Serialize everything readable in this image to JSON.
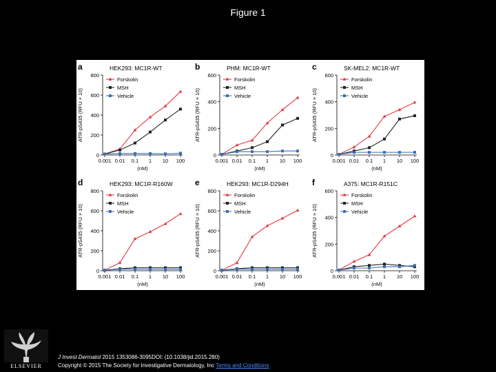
{
  "slide": {
    "title": "Figure 1"
  },
  "footer": {
    "journal": "J Invest Dermatol",
    "citation": " 2015 1353086-3095DOI: (10.1038/jid.2015.280)",
    "copyright": "Copyright © 2015 The Society for Investigative Dermatology, Inc ",
    "terms_link": "Terms and Conditions"
  },
  "logo": {
    "text": "ELSEVIER",
    "icon": "elsevier-tree-logo"
  },
  "colors": {
    "forskolin": "#e0393e",
    "msh": "#222222",
    "vehicle": "#3a6fb5"
  },
  "chart_data": [
    {
      "type": "line",
      "panel": "a",
      "title": "HEK293: MC1R-WT",
      "ylabel": "ATR-pS435 (RFU × 10)",
      "xlabel": "(nM)",
      "xscale": "log",
      "ylim": [
        0,
        800
      ],
      "yticks": [
        0,
        200,
        400,
        600,
        800
      ],
      "x": [
        0.001,
        0.01,
        0.1,
        1,
        10,
        100
      ],
      "xticklabels": [
        "0.001",
        "0.01",
        "0.1",
        "1",
        "10",
        "100"
      ],
      "legend": "top-left",
      "series": [
        {
          "name": "Forskolin",
          "values": [
            10,
            60,
            250,
            380,
            490,
            635
          ]
        },
        {
          "name": "MSH",
          "values": [
            10,
            50,
            120,
            230,
            350,
            460
          ]
        },
        {
          "name": "Vehicle",
          "values": [
            10,
            15,
            15,
            15,
            12,
            18
          ]
        }
      ]
    },
    {
      "type": "line",
      "panel": "b",
      "title": "PHM: MC1R-WT",
      "ylabel": "ATR-pS435 (RFU × 10)",
      "xlabel": "(nM)",
      "xscale": "log",
      "ylim": [
        0,
        600
      ],
      "yticks": [
        0,
        200,
        400,
        600
      ],
      "x": [
        0.001,
        0.01,
        0.1,
        1,
        10,
        100
      ],
      "xticklabels": [
        "0.001",
        "0.01",
        "0.1",
        "1",
        "10",
        "100"
      ],
      "legend": "top-left",
      "series": [
        {
          "name": "Forskolin",
          "values": [
            5,
            75,
            110,
            240,
            340,
            430
          ]
        },
        {
          "name": "MSH",
          "values": [
            5,
            30,
            55,
            100,
            225,
            275
          ]
        },
        {
          "name": "Vehicle",
          "values": [
            5,
            25,
            25,
            25,
            30,
            30
          ]
        }
      ]
    },
    {
      "type": "line",
      "panel": "c",
      "title": "SK-MEL2: MC1R-WT",
      "ylabel": "ATR-pS435 (RFU × 10)",
      "xlabel": "(nM)",
      "xscale": "log",
      "ylim": [
        0,
        600
      ],
      "yticks": [
        0,
        200,
        400,
        600
      ],
      "x": [
        0.001,
        0.01,
        0.1,
        1,
        10,
        100
      ],
      "xticklabels": [
        "0.001",
        "0.01",
        "0.1",
        "1",
        "10",
        "100"
      ],
      "legend": "top-left",
      "series": [
        {
          "name": "Forskolin",
          "values": [
            5,
            60,
            140,
            290,
            340,
            395
          ]
        },
        {
          "name": "MSH",
          "values": [
            5,
            30,
            55,
            120,
            270,
            295
          ]
        },
        {
          "name": "Vehicle",
          "values": [
            5,
            20,
            20,
            20,
            20,
            20
          ]
        }
      ]
    },
    {
      "type": "line",
      "panel": "d",
      "title": "HEK293: MC1R-R160W",
      "ylabel": "ATR-pS435 (RFU × 10)",
      "xlabel": "(nM)",
      "xscale": "log",
      "ylim": [
        0,
        800
      ],
      "yticks": [
        0,
        200,
        400,
        600,
        800
      ],
      "x": [
        0.001,
        0.01,
        0.1,
        1,
        10,
        100
      ],
      "xticklabels": [
        "0.001",
        "0.01",
        "0.1",
        "1",
        "10",
        "100"
      ],
      "legend": "top-left",
      "series": [
        {
          "name": "Forskolin",
          "values": [
            5,
            80,
            320,
            390,
            470,
            570
          ]
        },
        {
          "name": "MSH",
          "values": [
            5,
            20,
            30,
            30,
            30,
            30
          ]
        },
        {
          "name": "Vehicle",
          "values": [
            5,
            15,
            15,
            15,
            15,
            15
          ]
        }
      ]
    },
    {
      "type": "line",
      "panel": "e",
      "title": "HEK293: MC1R-D294H",
      "ylabel": "ATR-pS435 (RFU × 10)",
      "xlabel": "(nM)",
      "xscale": "log",
      "ylim": [
        0,
        800
      ],
      "yticks": [
        0,
        200,
        400,
        600,
        800
      ],
      "x": [
        0.001,
        0.01,
        0.1,
        1,
        10,
        100
      ],
      "xticklabels": [
        "0.001",
        "0.01",
        "0.1",
        "1",
        "10",
        "100"
      ],
      "legend": "top-left",
      "series": [
        {
          "name": "Forskolin",
          "values": [
            5,
            80,
            340,
            450,
            525,
            605
          ]
        },
        {
          "name": "MSH",
          "values": [
            5,
            20,
            30,
            30,
            30,
            30
          ]
        },
        {
          "name": "Vehicle",
          "values": [
            5,
            15,
            15,
            15,
            15,
            15
          ]
        }
      ]
    },
    {
      "type": "line",
      "panel": "f",
      "title": "A375: MC1R-R151C",
      "ylabel": "ATR-pS435 (RFU × 10)",
      "xlabel": "(nM)",
      "xscale": "log",
      "ylim": [
        0,
        600
      ],
      "yticks": [
        0,
        200,
        400,
        600
      ],
      "x": [
        0.001,
        0.01,
        0.1,
        1,
        10,
        100
      ],
      "xticklabels": [
        "0.001",
        "0.01",
        "0.1",
        "1",
        "10",
        "100"
      ],
      "legend": "top-left",
      "series": [
        {
          "name": "Forskolin",
          "values": [
            5,
            70,
            120,
            260,
            335,
            410
          ]
        },
        {
          "name": "MSH",
          "values": [
            5,
            30,
            40,
            50,
            40,
            30
          ]
        },
        {
          "name": "Vehicle",
          "values": [
            5,
            20,
            20,
            30,
            30,
            40
          ]
        }
      ]
    }
  ]
}
